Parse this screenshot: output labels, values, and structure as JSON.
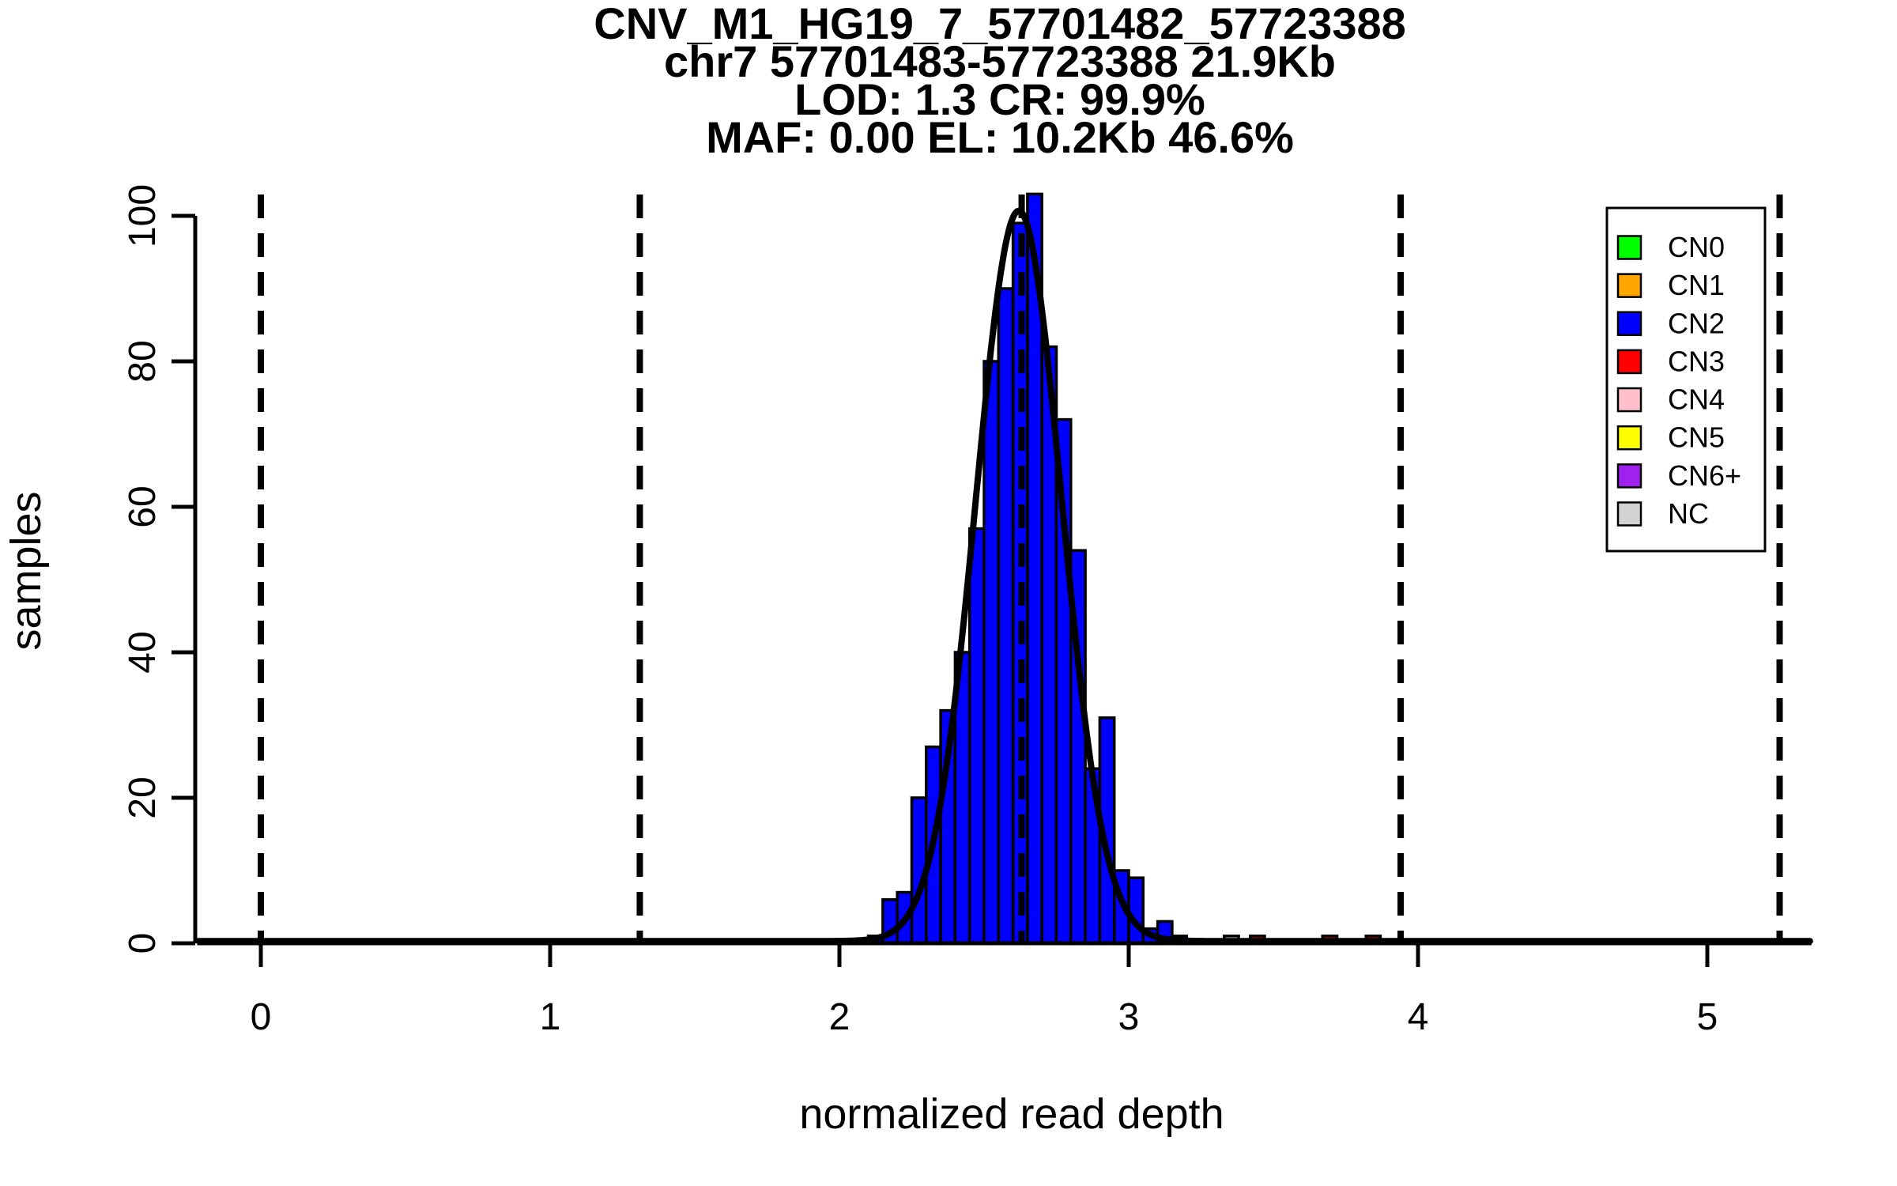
{
  "title": {
    "line1": "CNV_M1_HG19_7_57701482_57723388",
    "line2": "chr7 57701483-57723388 21.9Kb",
    "line3": "LOD: 1.3 CR: 99.9%",
    "line4": "MAF: 0.00 EL: 10.2Kb 46.6%"
  },
  "chart_data": {
    "type": "bar",
    "subtype": "histogram-with-density-curve",
    "title": "CNV_M1_HG19_7_57701482_57723388 / chr7 57701483-57723388 21.9Kb / LOD: 1.3 CR: 99.9% / MAF: 0.00 EL: 10.2Kb 46.6%",
    "xlabel": "normalized read depth",
    "ylabel": "samples",
    "xlim": [
      -0.22,
      5.36
    ],
    "ylim": [
      0,
      103
    ],
    "x_ticks": [
      0,
      1,
      2,
      3,
      4,
      5
    ],
    "y_ticks": [
      0,
      20,
      40,
      60,
      80,
      100
    ],
    "grid": false,
    "legend_position": "top-right",
    "bin_width": 0.05,
    "bars": [
      {
        "x": 2.1,
        "h": 1,
        "cn": "CN2"
      },
      {
        "x": 2.15,
        "h": 6,
        "cn": "CN2"
      },
      {
        "x": 2.2,
        "h": 7,
        "cn": "CN2"
      },
      {
        "x": 2.25,
        "h": 20,
        "cn": "CN2"
      },
      {
        "x": 2.3,
        "h": 27,
        "cn": "CN2"
      },
      {
        "x": 2.35,
        "h": 32,
        "cn": "CN2"
      },
      {
        "x": 2.4,
        "h": 40,
        "cn": "CN2"
      },
      {
        "x": 2.45,
        "h": 57,
        "cn": "CN2"
      },
      {
        "x": 2.5,
        "h": 80,
        "cn": "CN2"
      },
      {
        "x": 2.55,
        "h": 90,
        "cn": "CN2"
      },
      {
        "x": 2.6,
        "h": 99,
        "cn": "CN2"
      },
      {
        "x": 2.65,
        "h": 103,
        "cn": "CN2"
      },
      {
        "x": 2.7,
        "h": 82,
        "cn": "CN2"
      },
      {
        "x": 2.75,
        "h": 72,
        "cn": "CN2"
      },
      {
        "x": 2.8,
        "h": 54,
        "cn": "CN2"
      },
      {
        "x": 2.85,
        "h": 24,
        "cn": "CN2"
      },
      {
        "x": 2.9,
        "h": 31,
        "cn": "CN2"
      },
      {
        "x": 2.95,
        "h": 10,
        "cn": "CN2"
      },
      {
        "x": 3.0,
        "h": 9,
        "cn": "CN2"
      },
      {
        "x": 3.05,
        "h": 2,
        "cn": "CN2"
      },
      {
        "x": 3.1,
        "h": 3,
        "cn": "CN2"
      },
      {
        "x": 3.15,
        "h": 1,
        "cn": "CN2"
      },
      {
        "x": 3.33,
        "h": 1,
        "cn": "NC"
      },
      {
        "x": 3.42,
        "h": 1,
        "cn": "CN3"
      },
      {
        "x": 3.67,
        "h": 1,
        "cn": "CN3"
      },
      {
        "x": 3.82,
        "h": 1,
        "cn": "CN3"
      }
    ],
    "cn_colors": {
      "CN0": "#00FF00",
      "CN1": "#FFA500",
      "CN2": "#0000FF",
      "CN3": "#FF0000",
      "CN4": "#FFC0CB",
      "CN5": "#FFFF00",
      "CN6+": "#A020F0",
      "NC": "#D3D3D3"
    },
    "dashed_boundaries_x": [
      0.0,
      1.31,
      2.63,
      3.94,
      5.25
    ],
    "density_curve": {
      "mu": 2.62,
      "sigma": 0.148,
      "peak": 100.4,
      "baseline": 0.3
    },
    "legend": {
      "items": [
        {
          "label": "CN0",
          "color": "#00FF00"
        },
        {
          "label": "CN1",
          "color": "#FFA500"
        },
        {
          "label": "CN2",
          "color": "#0000FF"
        },
        {
          "label": "CN3",
          "color": "#FF0000"
        },
        {
          "label": "CN4",
          "color": "#FFC0CB"
        },
        {
          "label": "CN5",
          "color": "#FFFF00"
        },
        {
          "label": "CN6+",
          "color": "#A020F0"
        },
        {
          "label": "NC",
          "color": "#D3D3D3"
        }
      ]
    },
    "axis_color": "#000000",
    "curve_color": "#000000"
  }
}
